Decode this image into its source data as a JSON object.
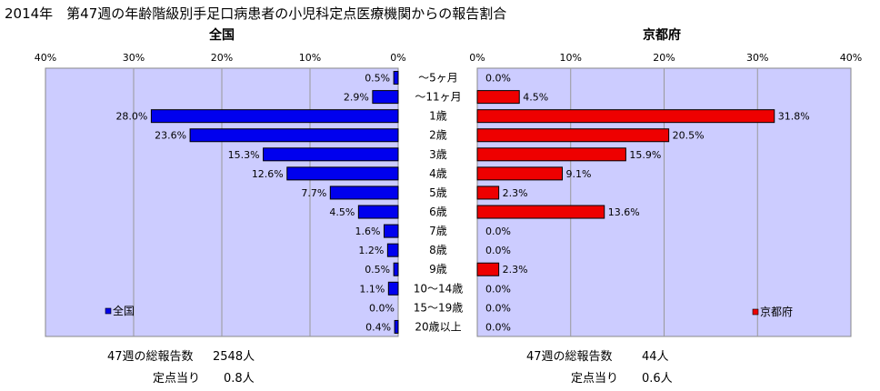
{
  "title": "2014年　第47週の年齢階級別手足口病患者の小児科定点医療機関からの報告割合",
  "colors": {
    "plot_bg": "#ccccff",
    "national_bar": "#0000ee",
    "kyoto_bar": "#ee0000",
    "grid": "#999999"
  },
  "chart_data": [
    {
      "type": "bar",
      "orientation": "horizontal",
      "title": "全国",
      "legend": "全国",
      "legend_position": "bottom-left",
      "xlim": [
        0,
        40
      ],
      "x_direction": "reversed",
      "ticks": [
        "40%",
        "30%",
        "20%",
        "10%",
        "0%"
      ],
      "grid": true,
      "color": "#0000ee",
      "categories": [
        "～5ヶ月",
        "～11ヶ月",
        "1歳",
        "2歳",
        "3歳",
        "4歳",
        "5歳",
        "6歳",
        "7歳",
        "8歳",
        "9歳",
        "10～14歳",
        "15～19歳",
        "20歳以上"
      ],
      "values": [
        0.5,
        2.9,
        28.0,
        23.6,
        15.3,
        12.6,
        7.7,
        4.5,
        1.6,
        1.2,
        0.5,
        1.1,
        0.0,
        0.4
      ],
      "labels": [
        "0.5%",
        "2.9%",
        "28.0%",
        "23.6%",
        "15.3%",
        "12.6%",
        "7.7%",
        "4.5%",
        "1.6%",
        "1.2%",
        "0.5%",
        "1.1%",
        "0.0%",
        "0.4%"
      ]
    },
    {
      "type": "bar",
      "orientation": "horizontal",
      "title": "京都府",
      "legend": "京都府",
      "legend_position": "bottom-right",
      "xlim": [
        0,
        40
      ],
      "ticks": [
        "0%",
        "10%",
        "20%",
        "30%",
        "40%"
      ],
      "grid": true,
      "color": "#ee0000",
      "categories": [
        "～5ヶ月",
        "～11ヶ月",
        "1歳",
        "2歳",
        "3歳",
        "4歳",
        "5歳",
        "6歳",
        "7歳",
        "8歳",
        "9歳",
        "10～14歳",
        "15～19歳",
        "20歳以上"
      ],
      "values": [
        0.0,
        4.5,
        31.8,
        20.5,
        15.9,
        9.1,
        2.3,
        13.6,
        0.0,
        0.0,
        2.3,
        0.0,
        0.0,
        0.0
      ],
      "labels": [
        "0.0%",
        "4.5%",
        "31.8%",
        "20.5%",
        "15.9%",
        "9.1%",
        "2.3%",
        "13.6%",
        "0.0%",
        "0.0%",
        "2.3%",
        "0.0%",
        "0.0%",
        "0.0%"
      ]
    }
  ],
  "footer": {
    "national_total_label": "47週の総報告数",
    "national_total_value": "2548人",
    "national_per_label": "定点当り",
    "national_per_value": "0.8人",
    "kyoto_total_label": "47週の総報告数",
    "kyoto_total_value": "44人",
    "kyoto_per_label": "定点当り",
    "kyoto_per_value": "0.6人"
  }
}
